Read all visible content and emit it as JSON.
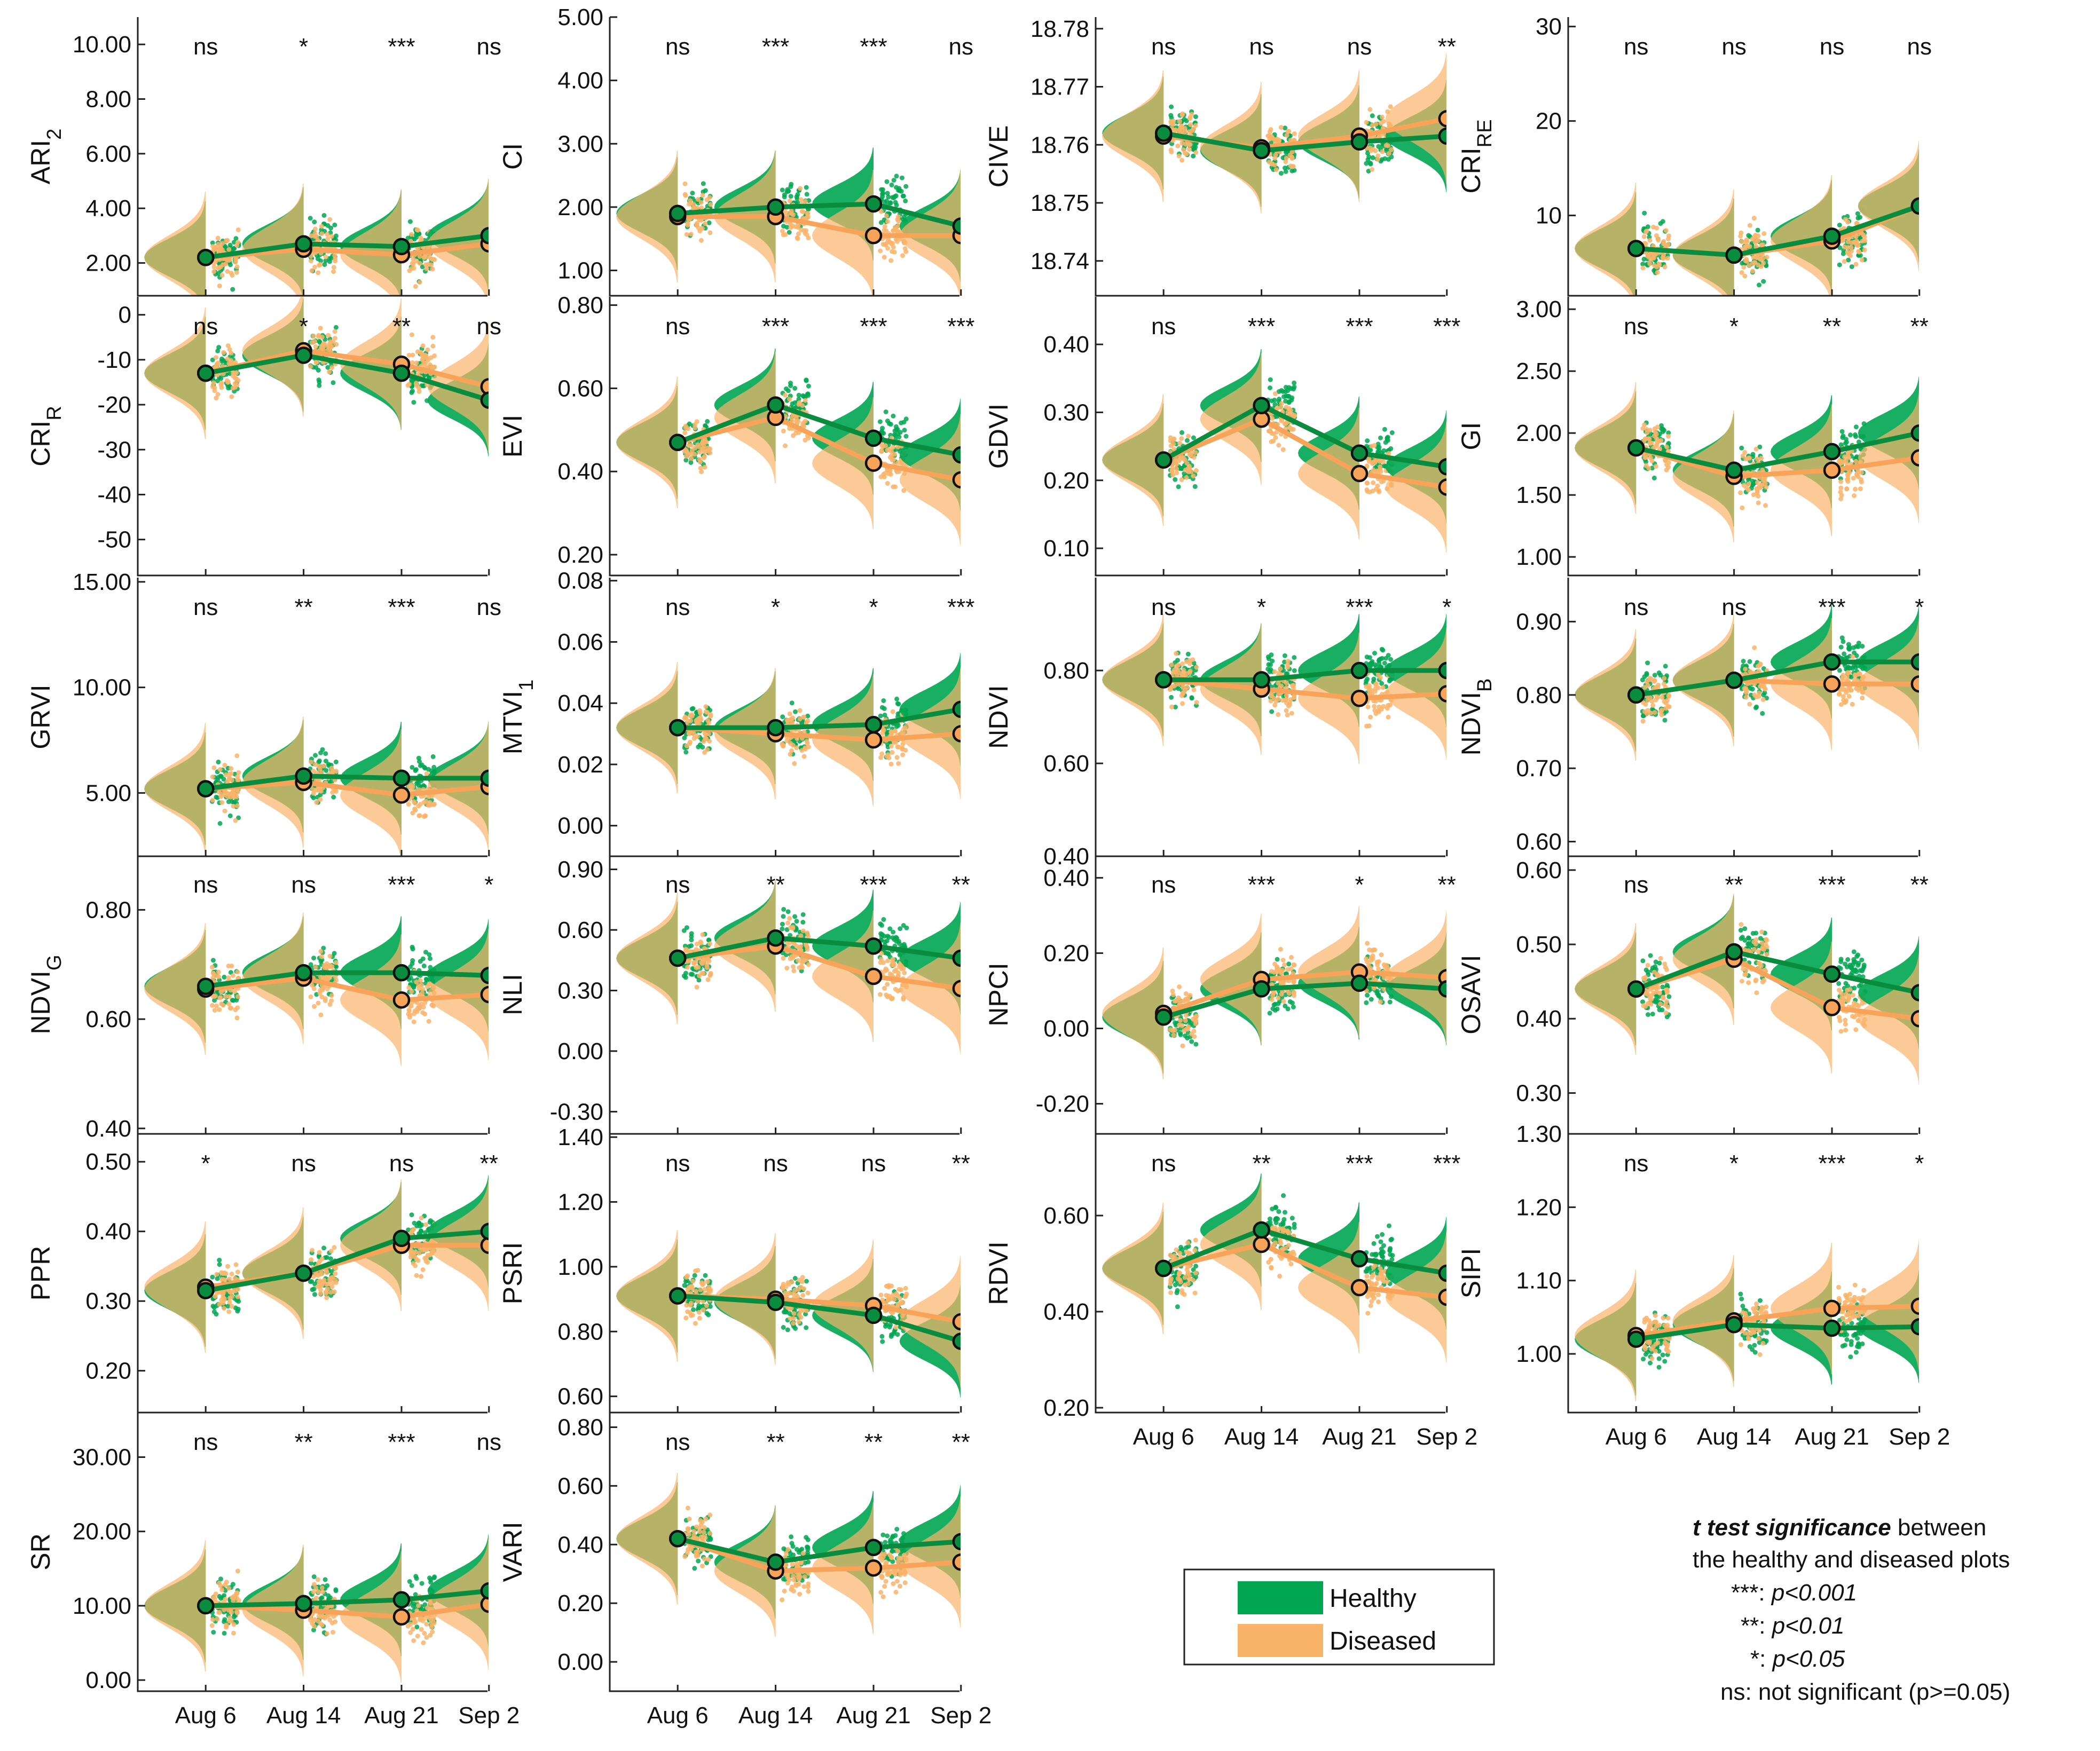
{
  "legend": [
    {
      "name": "Healthy",
      "color": "#00a651"
    },
    {
      "name": "Diseased",
      "color": "#f9b46a"
    }
  ],
  "note": {
    "title_bold": "t test significance",
    "title_rest": " between",
    "line2": "the healthy and diseased plots",
    "lines": [
      {
        "mark": "***:",
        "text": " p<0.001"
      },
      {
        "mark": "**:",
        "text": " p<0.01"
      },
      {
        "mark": "*:",
        "text": " p<0.05"
      },
      {
        "mark": "ns:",
        "text": " not significant (p>=0.05)"
      }
    ]
  },
  "chart_data": [
    {
      "type": "line",
      "id": "ARI2",
      "ylabel_main": "ARI",
      "ylabel_sub": "2",
      "x": [
        "Aug 6",
        "Aug 14",
        "Aug 21",
        "Sep 2"
      ],
      "ylim": [
        0.8,
        11.0
      ],
      "yticks": [
        2,
        4,
        6,
        8,
        10
      ],
      "ytick_labels": [
        "2.00",
        "4.00",
        "6.00",
        "8.00",
        "10.00"
      ],
      "series": [
        {
          "name": "Healthy",
          "values": [
            2.2,
            2.7,
            2.6,
            3.0
          ]
        },
        {
          "name": "Diseased",
          "values": [
            2.2,
            2.5,
            2.3,
            2.7
          ]
        }
      ],
      "significance": [
        "ns",
        "*",
        "***",
        "ns"
      ]
    },
    {
      "type": "line",
      "id": "CI",
      "ylabel_main": "CI",
      "ylabel_sub": "",
      "x": [
        "Aug 6",
        "Aug 14",
        "Aug 21",
        "Sep 2"
      ],
      "ylim": [
        0.6,
        5.0
      ],
      "yticks": [
        1,
        2,
        3,
        4,
        5
      ],
      "ytick_labels": [
        "1.00",
        "2.00",
        "3.00",
        "4.00",
        "5.00"
      ],
      "series": [
        {
          "name": "Healthy",
          "values": [
            1.9,
            2.0,
            2.05,
            1.7
          ]
        },
        {
          "name": "Diseased",
          "values": [
            1.85,
            1.85,
            1.55,
            1.55
          ]
        }
      ],
      "significance": [
        "ns",
        "***",
        "***",
        "ns"
      ]
    },
    {
      "type": "line",
      "id": "CIVE",
      "ylabel_main": "CIVE",
      "ylabel_sub": "",
      "x": [
        "Aug 6",
        "Aug 14",
        "Aug 21",
        "Sep 2"
      ],
      "ylim": [
        18.734,
        18.782
      ],
      "yticks": [
        18.74,
        18.75,
        18.76,
        18.77,
        18.78
      ],
      "ytick_labels": [
        "18.74",
        "18.75",
        "18.76",
        "18.77",
        "18.78"
      ],
      "series": [
        {
          "name": "Healthy",
          "values": [
            18.762,
            18.759,
            18.7605,
            18.7615
          ]
        },
        {
          "name": "Diseased",
          "values": [
            18.7615,
            18.7595,
            18.7615,
            18.7645
          ]
        }
      ],
      "significance": [
        "ns",
        "ns",
        "ns",
        "**"
      ]
    },
    {
      "type": "line",
      "id": "CRIRE",
      "ylabel_main": "CRI",
      "ylabel_sub": "RE",
      "x": [
        "Aug 6",
        "Aug 14",
        "Aug 21",
        "Sep 2"
      ],
      "ylim": [
        1.5,
        31.0
      ],
      "yticks": [
        10,
        20,
        30
      ],
      "ytick_labels": [
        "10",
        "20",
        "30"
      ],
      "series": [
        {
          "name": "Healthy",
          "values": [
            6.5,
            5.8,
            7.8,
            11.0
          ]
        },
        {
          "name": "Diseased",
          "values": [
            6.5,
            5.8,
            7.3,
            11.0
          ]
        }
      ],
      "significance": [
        "ns",
        "ns",
        "ns",
        "ns"
      ]
    },
    {
      "type": "line",
      "id": "CRIR",
      "ylabel_main": "CRI",
      "ylabel_sub": "R",
      "x": [
        "Aug 6",
        "Aug 14",
        "Aug 21",
        "Sep 2"
      ],
      "ylim": [
        -58,
        4
      ],
      "yticks": [
        0,
        -10,
        -20,
        -30,
        -40,
        -50
      ],
      "ytick_labels": [
        "0",
        "-10",
        "-20",
        "-30",
        "-40",
        "-50"
      ],
      "series": [
        {
          "name": "Healthy",
          "values": [
            -13,
            -9,
            -13,
            -19
          ]
        },
        {
          "name": "Diseased",
          "values": [
            -13,
            -8,
            -11,
            -16
          ]
        }
      ],
      "significance": [
        "ns",
        "*",
        "**",
        "ns"
      ]
    },
    {
      "type": "line",
      "id": "EVI",
      "ylabel_main": "EVI",
      "ylabel_sub": "",
      "x": [
        "Aug 6",
        "Aug 14",
        "Aug 21",
        "Sep 2"
      ],
      "ylim": [
        0.15,
        0.82
      ],
      "yticks": [
        0.2,
        0.4,
        0.6,
        0.8
      ],
      "ytick_labels": [
        "0.20",
        "0.40",
        "0.60",
        "0.80"
      ],
      "series": [
        {
          "name": "Healthy",
          "values": [
            0.47,
            0.56,
            0.48,
            0.44
          ]
        },
        {
          "name": "Diseased",
          "values": [
            0.47,
            0.53,
            0.42,
            0.38
          ]
        }
      ],
      "significance": [
        "ns",
        "***",
        "***",
        "***"
      ]
    },
    {
      "type": "line",
      "id": "GDVI",
      "ylabel_main": "GDVI",
      "ylabel_sub": "",
      "x": [
        "Aug 6",
        "Aug 14",
        "Aug 21",
        "Sep 2"
      ],
      "ylim": [
        0.06,
        0.47
      ],
      "yticks": [
        0.1,
        0.2,
        0.3,
        0.4
      ],
      "ytick_labels": [
        "0.10",
        "0.20",
        "0.30",
        "0.40"
      ],
      "series": [
        {
          "name": "Healthy",
          "values": [
            0.23,
            0.31,
            0.24,
            0.22
          ]
        },
        {
          "name": "Diseased",
          "values": [
            0.23,
            0.29,
            0.21,
            0.19
          ]
        }
      ],
      "significance": [
        "ns",
        "***",
        "***",
        "***"
      ]
    },
    {
      "type": "line",
      "id": "GI",
      "ylabel_main": "GI",
      "ylabel_sub": "",
      "x": [
        "Aug 6",
        "Aug 14",
        "Aug 21",
        "Sep 2"
      ],
      "ylim": [
        0.85,
        3.1
      ],
      "yticks": [
        1.0,
        1.5,
        2.0,
        2.5,
        3.0
      ],
      "ytick_labels": [
        "1.00",
        "1.50",
        "2.00",
        "2.50",
        "3.00"
      ],
      "series": [
        {
          "name": "Healthy",
          "values": [
            1.88,
            1.7,
            1.85,
            2.0
          ]
        },
        {
          "name": "Diseased",
          "values": [
            1.88,
            1.65,
            1.7,
            1.8
          ]
        }
      ],
      "significance": [
        "ns",
        "*",
        "**",
        "**"
      ]
    },
    {
      "type": "line",
      "id": "GRVI",
      "ylabel_main": "GRVI",
      "ylabel_sub": "",
      "x": [
        "Aug 6",
        "Aug 14",
        "Aug 21",
        "Sep 2"
      ],
      "ylim": [
        2.0,
        15.2
      ],
      "yticks": [
        5,
        10,
        15
      ],
      "ytick_labels": [
        "5.00",
        "10.00",
        "15.00"
      ],
      "series": [
        {
          "name": "Healthy",
          "values": [
            5.2,
            5.8,
            5.7,
            5.7
          ]
        },
        {
          "name": "Diseased",
          "values": [
            5.2,
            5.5,
            4.9,
            5.3
          ]
        }
      ],
      "significance": [
        "ns",
        "**",
        "***",
        "ns"
      ]
    },
    {
      "type": "line",
      "id": "MTVI1",
      "ylabel_main": "MTVI",
      "ylabel_sub": "1",
      "x": [
        "Aug 6",
        "Aug 14",
        "Aug 21",
        "Sep 2"
      ],
      "ylim": [
        -0.01,
        0.081
      ],
      "yticks": [
        0.0,
        0.02,
        0.04,
        0.06,
        0.08
      ],
      "ytick_labels": [
        "0.00",
        "0.02",
        "0.04",
        "0.06",
        "0.08"
      ],
      "series": [
        {
          "name": "Healthy",
          "values": [
            0.032,
            0.032,
            0.033,
            0.038
          ]
        },
        {
          "name": "Diseased",
          "values": [
            0.032,
            0.03,
            0.028,
            0.03
          ]
        }
      ],
      "significance": [
        "ns",
        "*",
        "*",
        "***"
      ]
    },
    {
      "type": "line",
      "id": "NDVI",
      "ylabel_main": "NDVI",
      "ylabel_sub": "",
      "x": [
        "Aug 6",
        "Aug 14",
        "Aug 21",
        "Sep 2"
      ],
      "ylim": [
        0.4,
        1.0
      ],
      "yticks": [
        0.4,
        0.6,
        0.8
      ],
      "ytick_labels": [
        "0.40",
        "0.60",
        "0.80"
      ],
      "series": [
        {
          "name": "Healthy",
          "values": [
            0.78,
            0.78,
            0.8,
            0.8
          ]
        },
        {
          "name": "Diseased",
          "values": [
            0.78,
            0.76,
            0.74,
            0.75
          ]
        }
      ],
      "significance": [
        "ns",
        "*",
        "***",
        "*"
      ]
    },
    {
      "type": "line",
      "id": "NDVIB",
      "ylabel_main": "NDVI",
      "ylabel_sub": "B",
      "x": [
        "Aug 6",
        "Aug 14",
        "Aug 21",
        "Sep 2"
      ],
      "ylim": [
        0.58,
        0.96
      ],
      "yticks": [
        0.6,
        0.7,
        0.8,
        0.9
      ],
      "ytick_labels": [
        "0.60",
        "0.70",
        "0.80",
        "0.90"
      ],
      "series": [
        {
          "name": "Healthy",
          "values": [
            0.8,
            0.82,
            0.845,
            0.845
          ]
        },
        {
          "name": "Diseased",
          "values": [
            0.8,
            0.82,
            0.815,
            0.815
          ]
        }
      ],
      "significance": [
        "ns",
        "ns",
        "***",
        "*"
      ]
    },
    {
      "type": "line",
      "id": "NDVIG",
      "ylabel_main": "NDVI",
      "ylabel_sub": "G",
      "x": [
        "Aug 6",
        "Aug 14",
        "Aug 21",
        "Sep 2"
      ],
      "ylim": [
        0.39,
        0.9
      ],
      "yticks": [
        0.4,
        0.6,
        0.8
      ],
      "ytick_labels": [
        "0.40",
        "0.60",
        "0.80"
      ],
      "series": [
        {
          "name": "Healthy",
          "values": [
            0.66,
            0.685,
            0.685,
            0.68
          ]
        },
        {
          "name": "Diseased",
          "values": [
            0.655,
            0.675,
            0.635,
            0.645
          ]
        }
      ],
      "significance": [
        "ns",
        "ns",
        "***",
        "*"
      ]
    },
    {
      "type": "line",
      "id": "NLI",
      "ylabel_main": "NLI",
      "ylabel_sub": "",
      "x": [
        "Aug 6",
        "Aug 14",
        "Aug 21",
        "Sep 2"
      ],
      "ylim": [
        -0.41,
        0.97
      ],
      "yticks": [
        -0.3,
        0.0,
        0.3,
        0.6,
        0.9
      ],
      "ytick_labels": [
        "-0.30",
        "0.00",
        "0.30",
        "0.60",
        "0.90"
      ],
      "series": [
        {
          "name": "Healthy",
          "values": [
            0.46,
            0.56,
            0.52,
            0.46
          ]
        },
        {
          "name": "Diseased",
          "values": [
            0.46,
            0.52,
            0.37,
            0.31
          ]
        }
      ],
      "significance": [
        "ns",
        "**",
        "***",
        "**"
      ]
    },
    {
      "type": "line",
      "id": "NPCI",
      "ylabel_main": "NPCI",
      "ylabel_sub": "",
      "x": [
        "Aug 6",
        "Aug 14",
        "Aug 21",
        "Sep 2"
      ],
      "ylim": [
        -0.28,
        0.46
      ],
      "yticks": [
        -0.2,
        0.0,
        0.2,
        0.4
      ],
      "ytick_labels": [
        "-0.20",
        "0.00",
        "0.20",
        "0.40"
      ],
      "series": [
        {
          "name": "Healthy",
          "values": [
            0.03,
            0.105,
            0.12,
            0.105
          ]
        },
        {
          "name": "Diseased",
          "values": [
            0.04,
            0.13,
            0.15,
            0.135
          ]
        }
      ],
      "significance": [
        "ns",
        "***",
        "*",
        "**"
      ]
    },
    {
      "type": "line",
      "id": "OSAVI",
      "ylabel_main": "OSAVI",
      "ylabel_sub": "",
      "x": [
        "Aug 6",
        "Aug 14",
        "Aug 21",
        "Sep 2"
      ],
      "ylim": [
        0.245,
        0.62
      ],
      "yticks": [
        0.3,
        0.4,
        0.5,
        0.6
      ],
      "ytick_labels": [
        "0.30",
        "0.40",
        "0.50",
        "0.60"
      ],
      "series": [
        {
          "name": "Healthy",
          "values": [
            0.44,
            0.49,
            0.46,
            0.435
          ]
        },
        {
          "name": "Diseased",
          "values": [
            0.44,
            0.48,
            0.415,
            0.4
          ]
        }
      ],
      "significance": [
        "ns",
        "**",
        "***",
        "**"
      ]
    },
    {
      "type": "line",
      "id": "PPR",
      "ylabel_main": "PPR",
      "ylabel_sub": "",
      "x": [
        "Aug 6",
        "Aug 14",
        "Aug 21",
        "Sep 2"
      ],
      "ylim": [
        0.14,
        0.54
      ],
      "yticks": [
        0.2,
        0.3,
        0.4,
        0.5
      ],
      "ytick_labels": [
        "0.20",
        "0.30",
        "0.40",
        "0.50"
      ],
      "series": [
        {
          "name": "Healthy",
          "values": [
            0.315,
            0.34,
            0.39,
            0.4
          ]
        },
        {
          "name": "Diseased",
          "values": [
            0.32,
            0.34,
            0.38,
            0.38
          ]
        }
      ],
      "significance": [
        "*",
        "ns",
        "ns",
        "**"
      ]
    },
    {
      "type": "line",
      "id": "PSRI",
      "ylabel_main": "PSRI",
      "ylabel_sub": "",
      "x": [
        "Aug 6",
        "Aug 14",
        "Aug 21",
        "Sep 2"
      ],
      "ylim": [
        0.55,
        1.41
      ],
      "yticks": [
        0.6,
        0.8,
        1.0,
        1.2,
        1.4
      ],
      "ytick_labels": [
        "0.60",
        "0.80",
        "1.00",
        "1.20",
        "1.40"
      ],
      "series": [
        {
          "name": "Healthy",
          "values": [
            0.91,
            0.89,
            0.85,
            0.77
          ]
        },
        {
          "name": "Diseased",
          "values": [
            0.91,
            0.9,
            0.88,
            0.83
          ]
        }
      ],
      "significance": [
        "ns",
        "ns",
        "ns",
        "**"
      ]
    },
    {
      "type": "line",
      "id": "RDVI",
      "ylabel_main": "RDVI",
      "ylabel_sub": "",
      "x": [
        "Aug 6",
        "Aug 14",
        "Aug 21",
        "Sep 2"
      ],
      "ylim": [
        0.19,
        0.77
      ],
      "yticks": [
        0.2,
        0.4,
        0.6
      ],
      "ytick_labels": [
        "0.20",
        "0.40",
        "0.60"
      ],
      "series": [
        {
          "name": "Healthy",
          "values": [
            0.49,
            0.57,
            0.51,
            0.48
          ]
        },
        {
          "name": "Diseased",
          "values": [
            0.49,
            0.54,
            0.45,
            0.43
          ]
        }
      ],
      "significance": [
        "ns",
        "**",
        "***",
        "***"
      ]
    },
    {
      "type": "line",
      "id": "SIPI",
      "ylabel_main": "SIPI",
      "ylabel_sub": "",
      "x": [
        "Aug 6",
        "Aug 14",
        "Aug 21",
        "Sep 2"
      ],
      "ylim": [
        0.92,
        1.3
      ],
      "yticks": [
        1.0,
        1.1,
        1.2,
        1.3
      ],
      "ytick_labels": [
        "1.00",
        "1.10",
        "1.20",
        "1.30"
      ],
      "series": [
        {
          "name": "Healthy",
          "values": [
            1.02,
            1.04,
            1.035,
            1.037
          ]
        },
        {
          "name": "Diseased",
          "values": [
            1.025,
            1.045,
            1.062,
            1.065
          ]
        }
      ],
      "significance": [
        "ns",
        "*",
        "***",
        "*"
      ]
    },
    {
      "type": "line",
      "id": "SR",
      "ylabel_main": "SR",
      "ylabel_sub": "",
      "x": [
        "Aug 6",
        "Aug 14",
        "Aug 21",
        "Sep 2"
      ],
      "ylim": [
        -1.5,
        36.0
      ],
      "yticks": [
        0,
        10,
        20,
        30
      ],
      "ytick_labels": [
        "0.00",
        "10.00",
        "20.00",
        "30.00"
      ],
      "series": [
        {
          "name": "Healthy",
          "values": [
            10.0,
            10.3,
            10.8,
            12.0
          ]
        },
        {
          "name": "Diseased",
          "values": [
            10.0,
            9.4,
            8.5,
            10.2
          ]
        }
      ],
      "significance": [
        "ns",
        "**",
        "***",
        "ns"
      ]
    },
    {
      "type": "line",
      "id": "VARI",
      "ylabel_main": "VARI",
      "ylabel_sub": "",
      "x": [
        "Aug 6",
        "Aug 14",
        "Aug 21",
        "Sep 2"
      ],
      "ylim": [
        -0.1,
        0.85
      ],
      "yticks": [
        0.0,
        0.2,
        0.4,
        0.6,
        0.8
      ],
      "ytick_labels": [
        "0.00",
        "0.20",
        "0.40",
        "0.60",
        "0.80"
      ],
      "series": [
        {
          "name": "Healthy",
          "values": [
            0.42,
            0.34,
            0.39,
            0.41
          ]
        },
        {
          "name": "Diseased",
          "values": [
            0.42,
            0.31,
            0.32,
            0.34
          ]
        }
      ],
      "significance": [
        "ns",
        "**",
        "**",
        "**"
      ]
    }
  ]
}
